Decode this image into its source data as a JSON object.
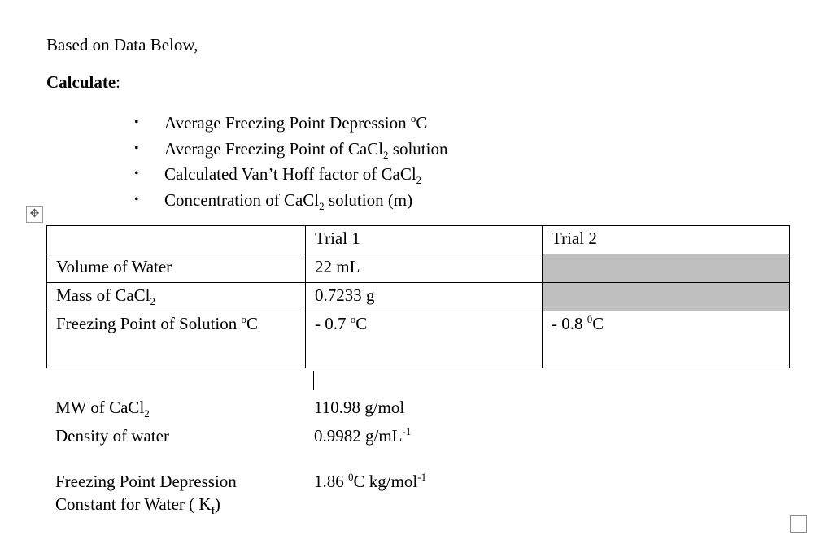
{
  "intro": "Based on Data Below,",
  "calculate_label": "Calculate",
  "calculate_colon": ":",
  "tasks": [
    {
      "text": "Average Freezing Point Depression ",
      "sup": "o",
      "after": "C"
    },
    {
      "text": "Average Freezing Point of CaCl",
      "sub": "2",
      "after": " solution"
    },
    {
      "text": "Calculated Van’t Hoff factor of CaCl",
      "sub": "2",
      "after": ""
    },
    {
      "text": "Concentration of CaCl",
      "sub": "2",
      "after": " solution (m)"
    }
  ],
  "bullet": "•",
  "move_handle_glyph": "✥",
  "table": {
    "headers": [
      "",
      "Trial 1",
      "Trial 2"
    ],
    "volume_label": "Volume of Water",
    "volume_trial1": "22 mL",
    "mass_label": "Mass of CaCl",
    "mass_sub": "2",
    "mass_trial1": "0.7233 g",
    "fp_label": "Freezing Point of Solution ",
    "fp_label_sup": "o",
    "fp_label_after": "C",
    "fp_trial1": "- 0.7 ",
    "fp_trial1_sup": "o",
    "fp_trial1_after": "C",
    "fp_trial2": "- 0.8 ",
    "fp_trial2_sup": "0",
    "fp_trial2_after": "C"
  },
  "constants": {
    "mw_label": "MW of CaCl",
    "mw_sub": "2",
    "mw_value": "110.98 g/mol",
    "density_label": "Density of water",
    "density_value": "0.9982 g/mL",
    "density_sup": "-1",
    "kf_label_line1": "Freezing Point Depression",
    "kf_label_line2": "Constant for Water ( K",
    "kf_sub": "f",
    "kf_label_end": ")",
    "kf_value": "1.86 ",
    "kf_value_sup": "0",
    "kf_value_after": "C kg/mol",
    "kf_value_sup2": "-1"
  }
}
